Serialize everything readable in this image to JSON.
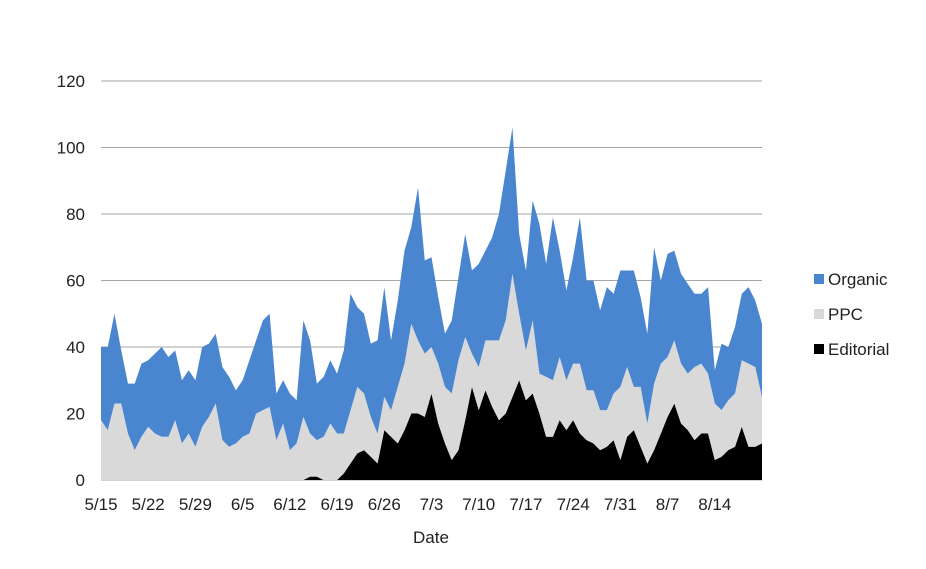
{
  "chart_data": {
    "type": "area",
    "stacked": true,
    "title": "",
    "xlabel": "Date",
    "ylabel": "",
    "ylim": [
      0,
      120
    ],
    "yticks": [
      "0",
      "20",
      "40",
      "60",
      "80",
      "100",
      "120"
    ],
    "xtick_labels": [
      "5/15",
      "5/22",
      "5/29",
      "6/5",
      "6/12",
      "6/19",
      "6/26",
      "7/3",
      "7/10",
      "7/17",
      "7/24",
      "7/31",
      "8/7",
      "8/14"
    ],
    "grid": "horizontal",
    "legend_position": "right",
    "x_start": "5/15",
    "x_interval": "daily",
    "series": [
      {
        "name": "Editorial",
        "color": "#000000",
        "values": [
          0,
          0,
          0,
          0,
          0,
          0,
          0,
          0,
          0,
          0,
          0,
          0,
          0,
          0,
          0,
          0,
          0,
          0,
          0,
          0,
          0,
          0,
          0,
          0,
          0,
          0,
          0,
          0,
          0,
          0,
          0,
          1,
          1,
          0,
          0,
          0,
          2,
          5,
          8,
          9,
          7,
          5,
          15,
          13,
          11,
          15,
          20,
          20,
          19,
          26,
          17,
          11,
          6,
          9,
          18,
          28,
          21,
          27,
          22,
          18,
          20,
          25,
          30,
          24,
          26,
          20,
          13,
          13,
          18,
          15,
          18,
          14,
          12,
          11,
          9,
          10,
          12,
          6,
          13,
          15,
          10,
          5,
          9,
          14,
          19,
          23,
          17,
          15,
          12,
          14,
          14,
          6,
          7,
          9,
          10,
          16,
          10,
          10,
          11
        ],
        "values_note": ""
      },
      {
        "name": "PPC",
        "color": "#d9d9d9",
        "values": [
          18,
          15,
          23,
          23,
          14,
          9,
          13,
          16,
          14,
          13,
          13,
          18,
          11,
          14,
          10,
          16,
          19,
          23,
          12,
          10,
          11,
          13,
          14,
          20,
          21,
          22,
          12,
          17,
          9,
          11,
          19,
          13,
          11,
          13,
          17,
          14,
          12,
          16,
          20,
          17,
          12,
          9,
          10,
          8,
          17,
          20,
          27,
          22,
          19,
          14,
          18,
          17,
          20,
          27,
          25,
          10,
          13,
          15,
          20,
          24,
          28,
          37,
          20,
          15,
          22,
          12,
          18,
          17,
          19,
          15,
          17,
          21,
          15,
          16,
          12,
          11,
          14,
          22,
          21,
          13,
          18,
          12,
          20,
          21,
          18,
          19,
          18,
          17,
          22,
          21,
          18,
          17,
          14,
          15,
          16,
          20,
          25,
          24,
          14
        ],
        "values_note": ""
      },
      {
        "name": "Organic",
        "color": "#4a86d0",
        "values": [
          22,
          25,
          27,
          16,
          15,
          20,
          22,
          20,
          24,
          27,
          24,
          21,
          19,
          19,
          20,
          24,
          22,
          21,
          22,
          21,
          16,
          17,
          22,
          22,
          27,
          28,
          14,
          13,
          17,
          13,
          29,
          28,
          17,
          18,
          19,
          18,
          25,
          35,
          24,
          24,
          22,
          28,
          33,
          21,
          26,
          34,
          29,
          46,
          28,
          27,
          20,
          16,
          22,
          25,
          31,
          25,
          31,
          27,
          31,
          38,
          45,
          44,
          24,
          24,
          36,
          45,
          34,
          49,
          32,
          27,
          32,
          44,
          33,
          33,
          30,
          37,
          30,
          35,
          29,
          35,
          27,
          27,
          41,
          25,
          31,
          27,
          27,
          27,
          22,
          21,
          26,
          10,
          20,
          16,
          20,
          20,
          23,
          20,
          22
        ],
        "values_note": ""
      }
    ]
  },
  "legend": [
    {
      "label": "Organic",
      "color": "#4a86d0"
    },
    {
      "label": "PPC",
      "color": "#d9d9d9"
    },
    {
      "label": "Editorial",
      "color": "#000000"
    }
  ]
}
